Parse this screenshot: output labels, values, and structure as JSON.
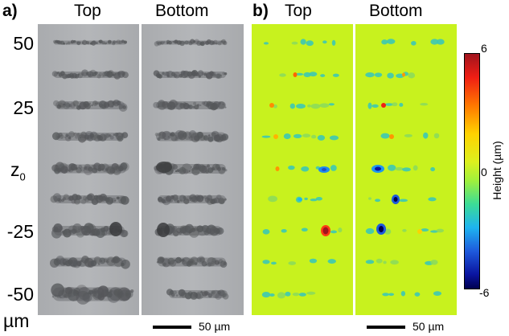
{
  "panel_a": {
    "letter": "a)",
    "col_labels": [
      "Top",
      "Bottom"
    ]
  },
  "panel_b": {
    "letter": "b)",
    "col_labels": [
      "Top",
      "Bottom"
    ]
  },
  "y_axis": {
    "ticks": [
      "50",
      "25",
      "z",
      "-25",
      "-50"
    ],
    "z_subscript": "0",
    "unit": "µm"
  },
  "scale_bars": [
    {
      "label": "50 µm"
    },
    {
      "label": "50 µm"
    }
  ],
  "colorbar": {
    "label": "Height (µm)",
    "max": "6",
    "mid": "0",
    "min": "-6"
  },
  "colors": {
    "micro_bg": "#b4b6b9",
    "height_bg": "#c8f21e",
    "track": "#55575a"
  }
}
